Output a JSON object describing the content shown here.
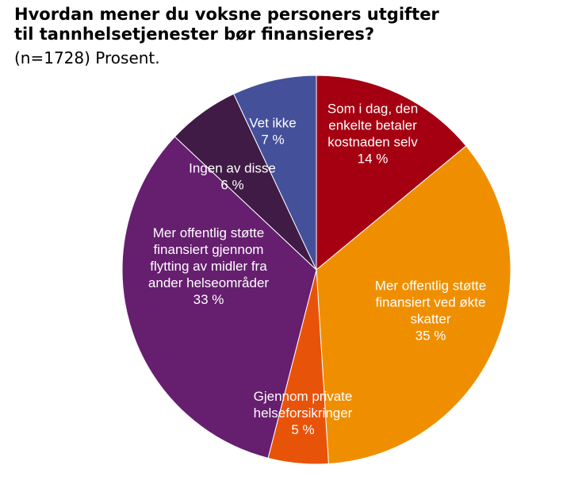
{
  "title_line1": "Hvordan mener du voksne personers utgifter",
  "title_line2": "til tannhelsetjenester bør finansieres?",
  "subtitle": "(n=1728) Prosent.",
  "chart_data": {
    "type": "pie",
    "unit": "%",
    "slices": [
      {
        "label": [
          "Som i dag, den",
          "enkelte betaler",
          "kostnaden selv"
        ],
        "value": 14,
        "value_label": "14 %",
        "color": "#a50011"
      },
      {
        "label": [
          "Mer offentlig støtte",
          "finansiert ved økte",
          "skatter"
        ],
        "value": 35,
        "value_label": "35 %",
        "color": "#ef8f00"
      },
      {
        "label": [
          "Gjennom private",
          "helseforsikringer"
        ],
        "value": 5,
        "value_label": "5 %",
        "color": "#e8530a"
      },
      {
        "label": [
          "Mer offentlig støtte",
          "finansiert gjennom",
          "flytting av midler fra",
          "ander helseområder"
        ],
        "value": 33,
        "value_label": "33 %",
        "color": "#661e6f"
      },
      {
        "label": [
          "Ingen av disse"
        ],
        "value": 6,
        "value_label": "6 %",
        "color": "#3f1b45"
      },
      {
        "label": [
          "Vet ikke"
        ],
        "value": 7,
        "value_label": "7 %",
        "color": "#44509a"
      }
    ]
  }
}
